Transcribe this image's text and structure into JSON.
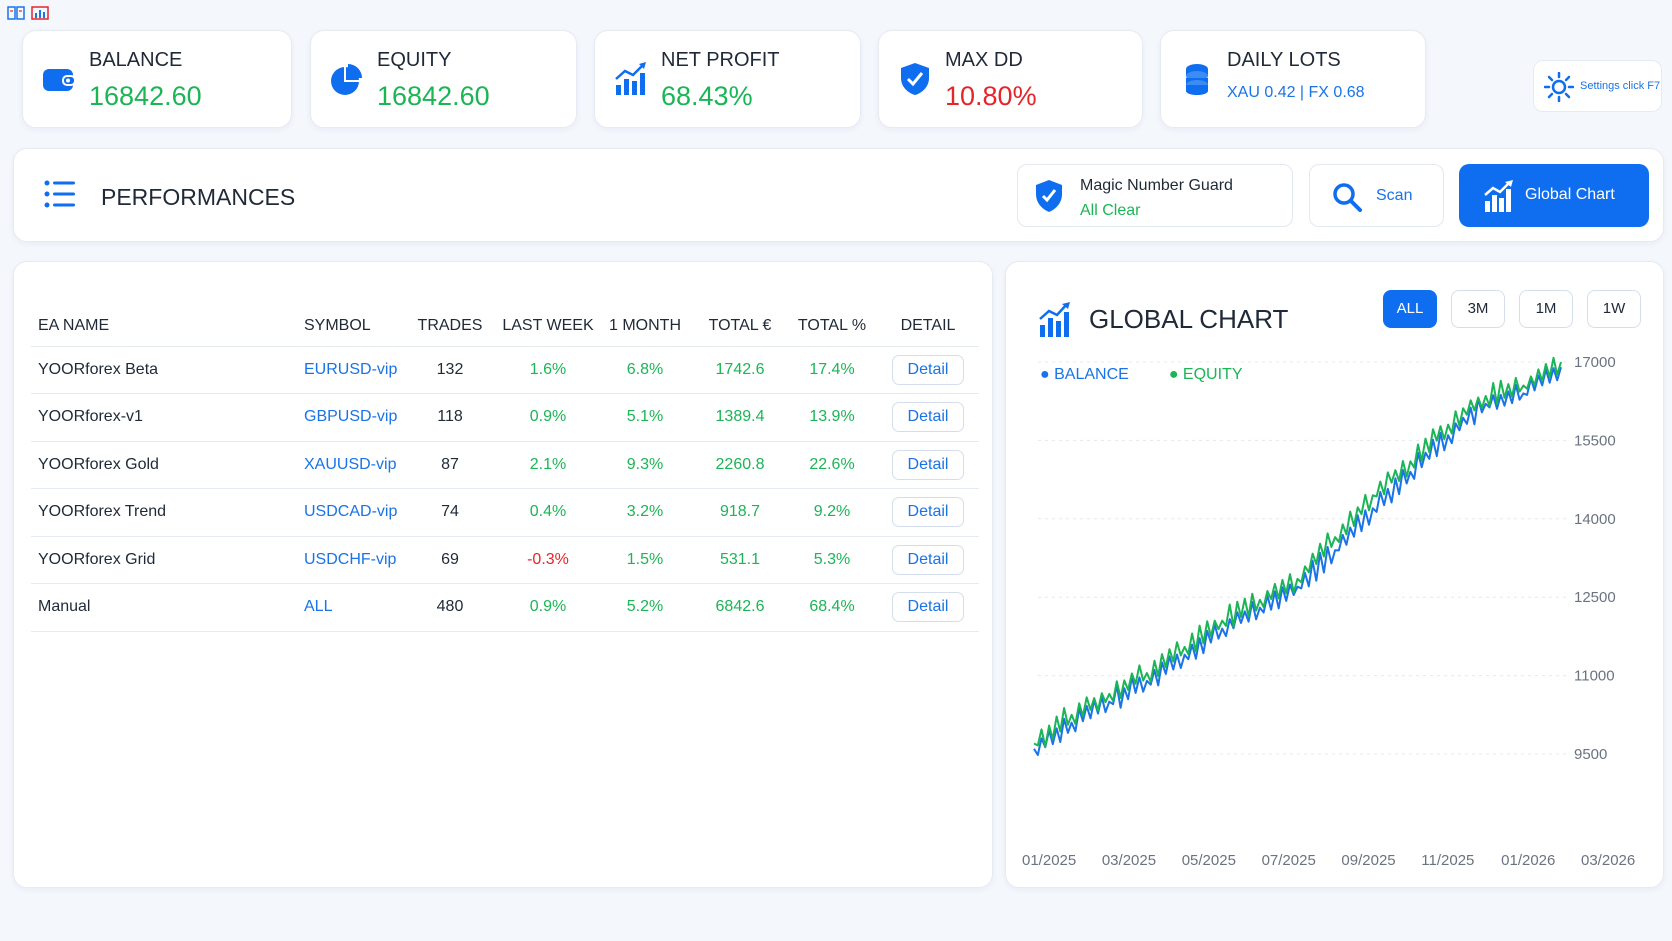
{
  "colors": {
    "accent": "#0f6ef0",
    "positive": "#1bb556",
    "negative": "#e5252a",
    "link": "#1a73e8"
  },
  "kpis": [
    {
      "label": "BALANCE",
      "value": "16842.60",
      "icon": "wallet-icon"
    },
    {
      "label": "EQUITY",
      "value": "16842.60",
      "icon": "pie-icon"
    },
    {
      "label": "NET PROFIT",
      "value": "68.43%",
      "icon": "growth-chart-icon"
    },
    {
      "label": "MAX DD",
      "value": "10.80%",
      "icon": "shield-check-icon"
    },
    {
      "label": "DAILY LOTS",
      "value": "XAU 0.42 | FX 0.68",
      "icon": "coins-icon"
    }
  ],
  "settings": {
    "label": "Settings click F7"
  },
  "performances": {
    "title": "PERFORMANCES",
    "guard_title": "Magic Number Guard",
    "guard_status": "All Clear",
    "scan_label": "Scan",
    "global_chart_label": "Global Chart"
  },
  "table": {
    "headers": [
      "EA NAME",
      "SYMBOL",
      "TRADES",
      "LAST WEEK",
      "1 MONTH",
      "TOTAL €",
      "TOTAL %",
      "DETAIL"
    ],
    "detail_label": "Detail",
    "rows": [
      {
        "name": "YOORforex Beta",
        "symbol": "EURUSD-vip",
        "trades": "132",
        "last_week": "1.6%",
        "month": "6.8%",
        "total_eur": "1742.6",
        "total_pct": "17.4%",
        "neg": false
      },
      {
        "name": "YOORforex-v1",
        "symbol": "GBPUSD-vip",
        "trades": "118",
        "last_week": "0.9%",
        "month": "5.1%",
        "total_eur": "1389.4",
        "total_pct": "13.9%",
        "neg": false
      },
      {
        "name": "YOORforex Gold",
        "symbol": "XAUUSD-vip",
        "trades": "87",
        "last_week": "2.1%",
        "month": "9.3%",
        "total_eur": "2260.8",
        "total_pct": "22.6%",
        "neg": false
      },
      {
        "name": "YOORforex Trend",
        "symbol": "USDCAD-vip",
        "trades": "74",
        "last_week": "0.4%",
        "month": "3.2%",
        "total_eur": "918.7",
        "total_pct": "9.2%",
        "neg": false
      },
      {
        "name": "YOORforex Grid",
        "symbol": "USDCHF-vip",
        "trades": "69",
        "last_week": "-0.3%",
        "month": "1.5%",
        "total_eur": "531.1",
        "total_pct": "5.3%",
        "neg": true
      },
      {
        "name": "Manual",
        "symbol": "ALL",
        "trades": "480",
        "last_week": "0.9%",
        "month": "5.2%",
        "total_eur": "6842.6",
        "total_pct": "68.4%",
        "neg": false
      }
    ]
  },
  "global_chart": {
    "title": "GLOBAL CHART",
    "ranges": [
      "ALL",
      "3M",
      "1M",
      "1W"
    ],
    "active_range": "ALL",
    "legend": [
      "BALANCE",
      "EQUITY"
    ]
  },
  "chart_data": {
    "type": "line",
    "x": [
      "01/2025",
      "02/2025",
      "03/2025",
      "04/2025",
      "05/2025",
      "06/2025",
      "07/2025",
      "08/2025",
      "09/2025",
      "10/2025",
      "11/2025",
      "12/2025",
      "01/2026",
      "02/2026",
      "03/2026"
    ],
    "x_tick_labels": [
      "01/2025",
      "03/2025",
      "05/2025",
      "07/2025",
      "09/2025",
      "11/2025",
      "01/2026",
      "03/2026"
    ],
    "y_tick_labels": [
      "9500",
      "11000",
      "12500",
      "14000",
      "15500",
      "17000"
    ],
    "ylim": [
      9500,
      17000
    ],
    "grid": true,
    "legend_position": "top-left",
    "series": [
      {
        "name": "BALANCE",
        "color": "#1a73e8",
        "values": [
          9600,
          10100,
          10500,
          10900,
          11400,
          11900,
          12300,
          12700,
          13400,
          14200,
          14900,
          15600,
          16200,
          16400,
          16900
        ]
      },
      {
        "name": "EQUITY",
        "color": "#1bb556",
        "values": [
          9700,
          10250,
          10650,
          11050,
          11550,
          12050,
          12450,
          12850,
          13650,
          14450,
          15100,
          15800,
          16350,
          16550,
          17000
        ]
      }
    ]
  }
}
